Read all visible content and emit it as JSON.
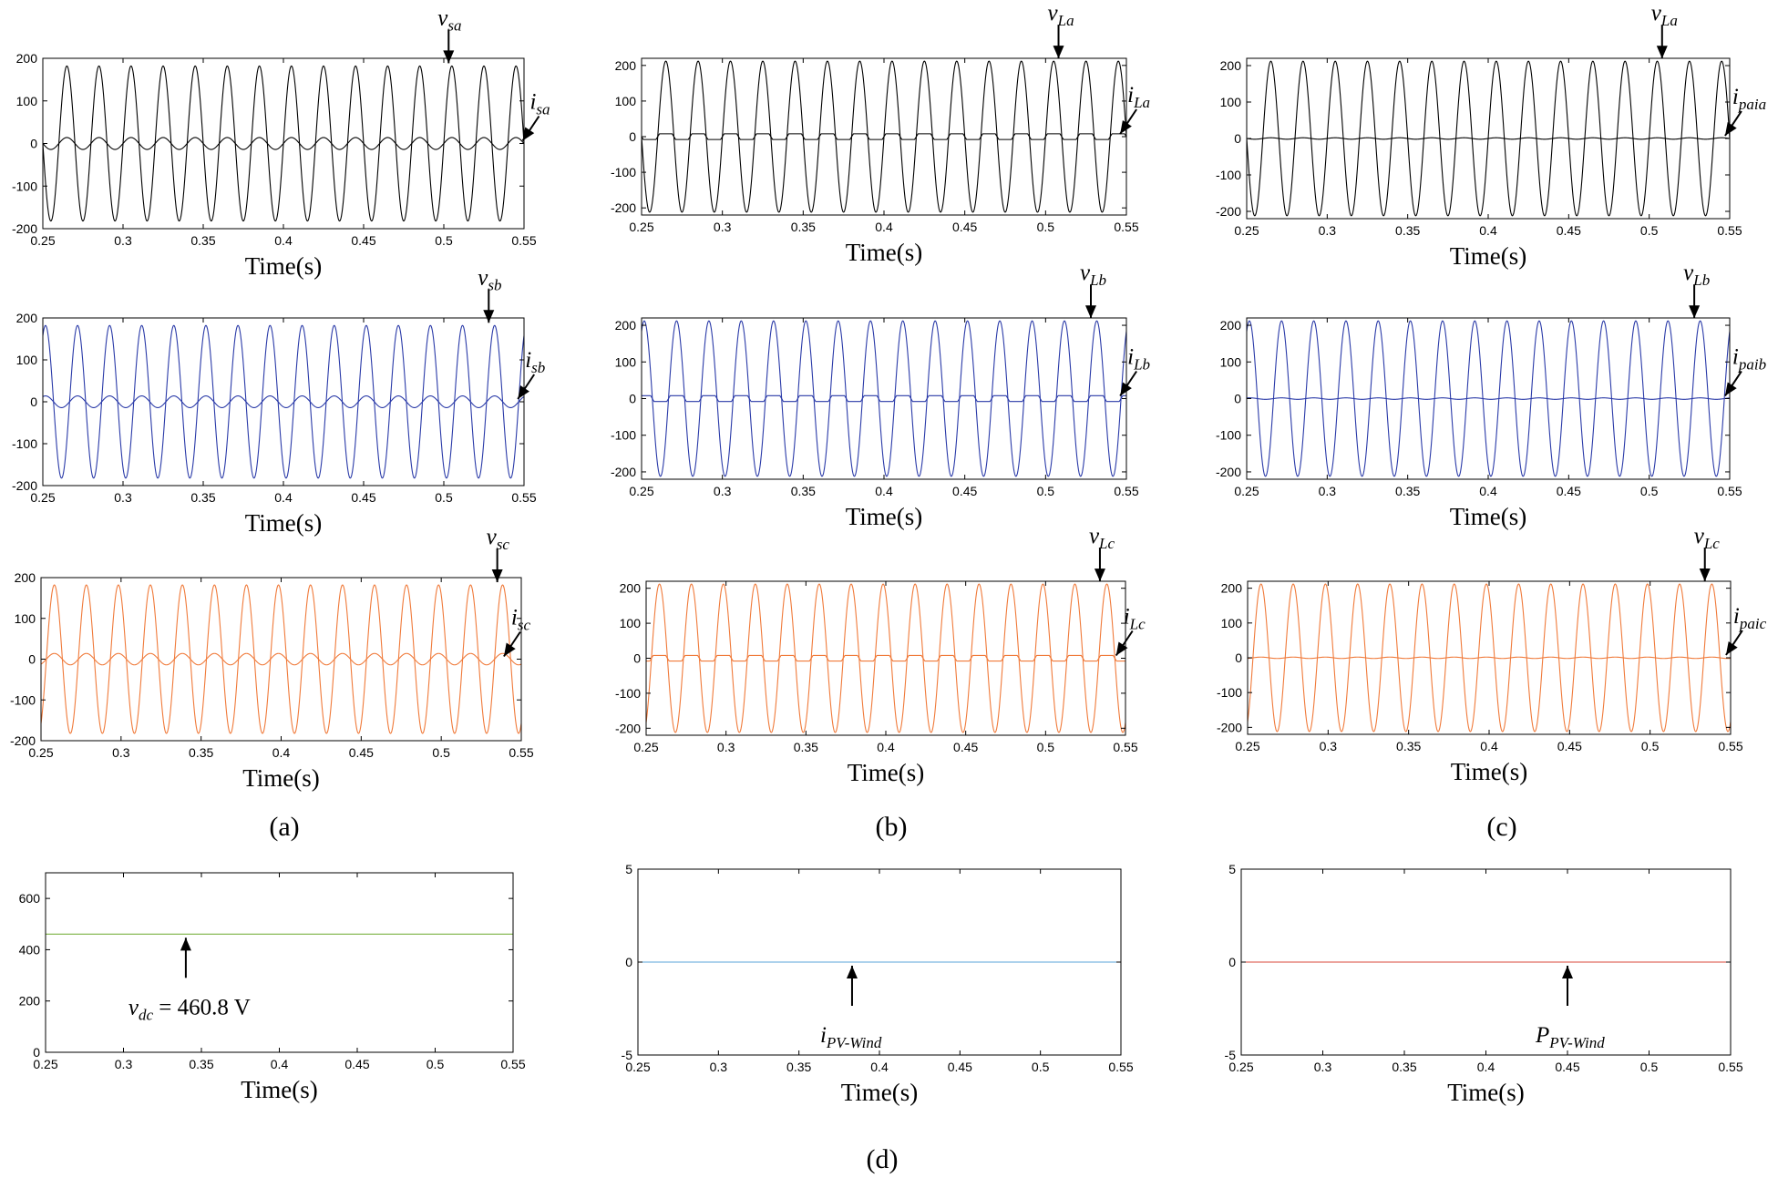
{
  "panel_labels": {
    "a": "(a)",
    "b": "(b)",
    "c": "(c)",
    "d": "(d)"
  },
  "colors": {
    "phase_a": "#000000",
    "phase_b": "#2a3aa8",
    "phase_c": "#f07a3a",
    "vdc": "#7cb342",
    "ipv": "#5ba4d8",
    "ppv": "#d9483b"
  },
  "chart_data": [
    {
      "id": "a1",
      "type": "line",
      "xlabel": "Time(s)",
      "xlim": [
        0.25,
        0.55
      ],
      "ylim": [
        -200,
        200
      ],
      "xticks": [
        "0.25",
        "0.3",
        "0.35",
        "0.4",
        "0.45",
        "0.5",
        "0.55"
      ],
      "yticks": [
        "-200",
        "-100",
        "0",
        "100",
        "200"
      ],
      "color_key": "phase_a",
      "series": [
        {
          "name": "v_sa",
          "amplitude": 182,
          "frequency_hz": 50
        },
        {
          "name": "i_sa",
          "amplitude": 14,
          "frequency_hz": 50
        }
      ],
      "annotations": [
        {
          "text": "v",
          "sub": "sa",
          "x": 0.503,
          "y": 182
        },
        {
          "text": "i",
          "sub": "sa",
          "x": 0.548,
          "y": 0
        }
      ]
    },
    {
      "id": "b1",
      "type": "line",
      "xlabel": "Time(s)",
      "xlim": [
        0.25,
        0.55
      ],
      "ylim": [
        -220,
        220
      ],
      "xticks": [
        "0.25",
        "0.3",
        "0.35",
        "0.4",
        "0.45",
        "0.5",
        "0.55"
      ],
      "yticks": [
        "-200",
        "-100",
        "0",
        "100",
        "200"
      ],
      "color_key": "phase_a",
      "series": [
        {
          "name": "v_La",
          "amplitude": 212,
          "frequency_hz": 50
        },
        {
          "name": "i_La",
          "amplitude": 8,
          "frequency_hz": 50,
          "shape": "square"
        }
      ],
      "annotations": [
        {
          "text": "v",
          "sub": "La",
          "x": 0.508,
          "y": 212
        },
        {
          "text": "i",
          "sub": "La",
          "x": 0.545,
          "y": 0
        }
      ]
    },
    {
      "id": "c1",
      "type": "line",
      "xlabel": "Time(s)",
      "xlim": [
        0.25,
        0.55
      ],
      "ylim": [
        -220,
        220
      ],
      "xticks": [
        "0.25",
        "0.3",
        "0.35",
        "0.4",
        "0.45",
        "0.5",
        "0.55"
      ],
      "yticks": [
        "-200",
        "-100",
        "0",
        "100",
        "200"
      ],
      "color_key": "phase_a",
      "series": [
        {
          "name": "v_La",
          "amplitude": 212,
          "frequency_hz": 50
        },
        {
          "name": "i_paia",
          "amplitude": 2,
          "frequency_hz": 50
        }
      ],
      "annotations": [
        {
          "text": "v",
          "sub": "La",
          "x": 0.508,
          "y": 212
        },
        {
          "text": "i",
          "sub": "paia",
          "x": 0.546,
          "y": 0
        }
      ]
    },
    {
      "id": "a2",
      "type": "line",
      "xlabel": "Time(s)",
      "xlim": [
        0.25,
        0.55
      ],
      "ylim": [
        -200,
        200
      ],
      "xticks": [
        "0.25",
        "0.3",
        "0.35",
        "0.4",
        "0.45",
        "0.5",
        "0.55"
      ],
      "yticks": [
        "-200",
        "-100",
        "0",
        "100",
        "200"
      ],
      "color_key": "phase_b",
      "series": [
        {
          "name": "v_sb",
          "amplitude": 182,
          "frequency_hz": 50,
          "phase_deg": -120
        },
        {
          "name": "i_sb",
          "amplitude": 14,
          "frequency_hz": 50,
          "phase_deg": -120
        }
      ],
      "annotations": [
        {
          "text": "v",
          "sub": "sb",
          "x": 0.528,
          "y": 182
        },
        {
          "text": "i",
          "sub": "sb",
          "x": 0.545,
          "y": 0
        }
      ]
    },
    {
      "id": "b2",
      "type": "line",
      "xlabel": "Time(s)",
      "xlim": [
        0.25,
        0.55
      ],
      "ylim": [
        -220,
        220
      ],
      "xticks": [
        "0.25",
        "0.3",
        "0.35",
        "0.4",
        "0.45",
        "0.5",
        "0.55"
      ],
      "yticks": [
        "-200",
        "-100",
        "0",
        "100",
        "200"
      ],
      "color_key": "phase_b",
      "series": [
        {
          "name": "v_Lb",
          "amplitude": 212,
          "frequency_hz": 50,
          "phase_deg": -120
        },
        {
          "name": "i_Lb",
          "amplitude": 8,
          "frequency_hz": 50,
          "phase_deg": -120,
          "shape": "square"
        }
      ],
      "annotations": [
        {
          "text": "v",
          "sub": "Lb",
          "x": 0.528,
          "y": 212
        },
        {
          "text": "i",
          "sub": "Lb",
          "x": 0.545,
          "y": 0
        }
      ]
    },
    {
      "id": "c2",
      "type": "line",
      "xlabel": "Time(s)",
      "xlim": [
        0.25,
        0.55
      ],
      "ylim": [
        -220,
        220
      ],
      "xticks": [
        "0.25",
        "0.3",
        "0.35",
        "0.4",
        "0.45",
        "0.5",
        "0.55"
      ],
      "yticks": [
        "-200",
        "-100",
        "0",
        "100",
        "200"
      ],
      "color_key": "phase_b",
      "series": [
        {
          "name": "v_Lb",
          "amplitude": 212,
          "frequency_hz": 50,
          "phase_deg": -120
        },
        {
          "name": "i_paib",
          "amplitude": 2,
          "frequency_hz": 50,
          "phase_deg": -120
        }
      ],
      "annotations": [
        {
          "text": "v",
          "sub": "Lb",
          "x": 0.528,
          "y": 212
        },
        {
          "text": "i",
          "sub": "paib",
          "x": 0.546,
          "y": 0
        }
      ]
    },
    {
      "id": "a3",
      "type": "line",
      "xlabel": "Time(s)",
      "xlim": [
        0.25,
        0.55
      ],
      "ylim": [
        -200,
        200
      ],
      "xticks": [
        "0.25",
        "0.3",
        "0.35",
        "0.4",
        "0.45",
        "0.5",
        "0.55"
      ],
      "yticks": [
        "-200",
        "-100",
        "0",
        "100",
        "200"
      ],
      "color_key": "phase_c",
      "series": [
        {
          "name": "v_sc",
          "amplitude": 182,
          "frequency_hz": 50,
          "phase_deg": 120
        },
        {
          "name": "i_sc",
          "amplitude": 14,
          "frequency_hz": 50,
          "phase_deg": 120
        }
      ],
      "annotations": [
        {
          "text": "v",
          "sub": "sc",
          "x": 0.535,
          "y": 182
        },
        {
          "text": "i",
          "sub": "sc",
          "x": 0.538,
          "y": 0
        }
      ]
    },
    {
      "id": "b3",
      "type": "line",
      "xlabel": "Time(s)",
      "xlim": [
        0.25,
        0.55
      ],
      "ylim": [
        -220,
        220
      ],
      "xticks": [
        "0.25",
        "0.3",
        "0.35",
        "0.4",
        "0.45",
        "0.5",
        "0.55"
      ],
      "yticks": [
        "-200",
        "-100",
        "0",
        "100",
        "200"
      ],
      "color_key": "phase_c",
      "series": [
        {
          "name": "v_Lc",
          "amplitude": 212,
          "frequency_hz": 50,
          "phase_deg": 120
        },
        {
          "name": "i_Lc",
          "amplitude": 8,
          "frequency_hz": 50,
          "phase_deg": 120,
          "shape": "square"
        }
      ],
      "annotations": [
        {
          "text": "v",
          "sub": "Lc",
          "x": 0.534,
          "y": 212
        },
        {
          "text": "i",
          "sub": "Lc",
          "x": 0.543,
          "y": 0
        }
      ]
    },
    {
      "id": "c3",
      "type": "line",
      "xlabel": "Time(s)",
      "xlim": [
        0.25,
        0.55
      ],
      "ylim": [
        -220,
        220
      ],
      "xticks": [
        "0.25",
        "0.3",
        "0.35",
        "0.4",
        "0.45",
        "0.5",
        "0.55"
      ],
      "yticks": [
        "-200",
        "-100",
        "0",
        "100",
        "200"
      ],
      "color_key": "phase_c",
      "series": [
        {
          "name": "v_Lc",
          "amplitude": 212,
          "frequency_hz": 50,
          "phase_deg": 120
        },
        {
          "name": "i_paic",
          "amplitude": 2,
          "frequency_hz": 50,
          "phase_deg": 120
        }
      ],
      "annotations": [
        {
          "text": "v",
          "sub": "Lc",
          "x": 0.534,
          "y": 212
        },
        {
          "text": "i",
          "sub": "paic",
          "x": 0.546,
          "y": 0
        }
      ]
    },
    {
      "id": "d1",
      "type": "line",
      "xlabel": "Time(s)",
      "xlim": [
        0.25,
        0.55
      ],
      "ylim": [
        0,
        700
      ],
      "xticks": [
        "0.25",
        "0.3",
        "0.35",
        "0.4",
        "0.45",
        "0.5",
        "0.55"
      ],
      "yticks": [
        "0",
        "200",
        "400",
        "600"
      ],
      "color_key": "vdc",
      "series": [
        {
          "name": "v_dc",
          "constant": 460.8
        }
      ],
      "annotations": [
        {
          "text": "v",
          "sub": "dc",
          "tail": " = 460.8 V",
          "x": 0.34,
          "y": 460.8
        }
      ]
    },
    {
      "id": "d2",
      "type": "line",
      "xlabel": "Time(s)",
      "xlim": [
        0.25,
        0.55
      ],
      "ylim": [
        -5,
        5
      ],
      "xticks": [
        "0.25",
        "0.3",
        "0.35",
        "0.4",
        "0.45",
        "0.5",
        "0.55"
      ],
      "yticks": [
        "-5",
        "0",
        "5"
      ],
      "color_key": "ipv",
      "series": [
        {
          "name": "i_PV-Wind",
          "constant": 0
        }
      ],
      "annotations": [
        {
          "text": "i",
          "sub": "PV-Wind",
          "x": 0.383,
          "y": 0
        }
      ]
    },
    {
      "id": "d3",
      "type": "line",
      "xlabel": "Time(s)",
      "xlim": [
        0.25,
        0.55
      ],
      "ylim": [
        -5,
        5
      ],
      "xticks": [
        "0.25",
        "0.3",
        "0.35",
        "0.4",
        "0.45",
        "0.5",
        "0.55"
      ],
      "yticks": [
        "-5",
        "0",
        "5"
      ],
      "color_key": "ppv",
      "series": [
        {
          "name": "P_PV-Wind",
          "constant": 0
        }
      ],
      "annotations": [
        {
          "text": "P",
          "sub": "PV-Wind",
          "x": 0.45,
          "y": 0
        }
      ]
    }
  ]
}
